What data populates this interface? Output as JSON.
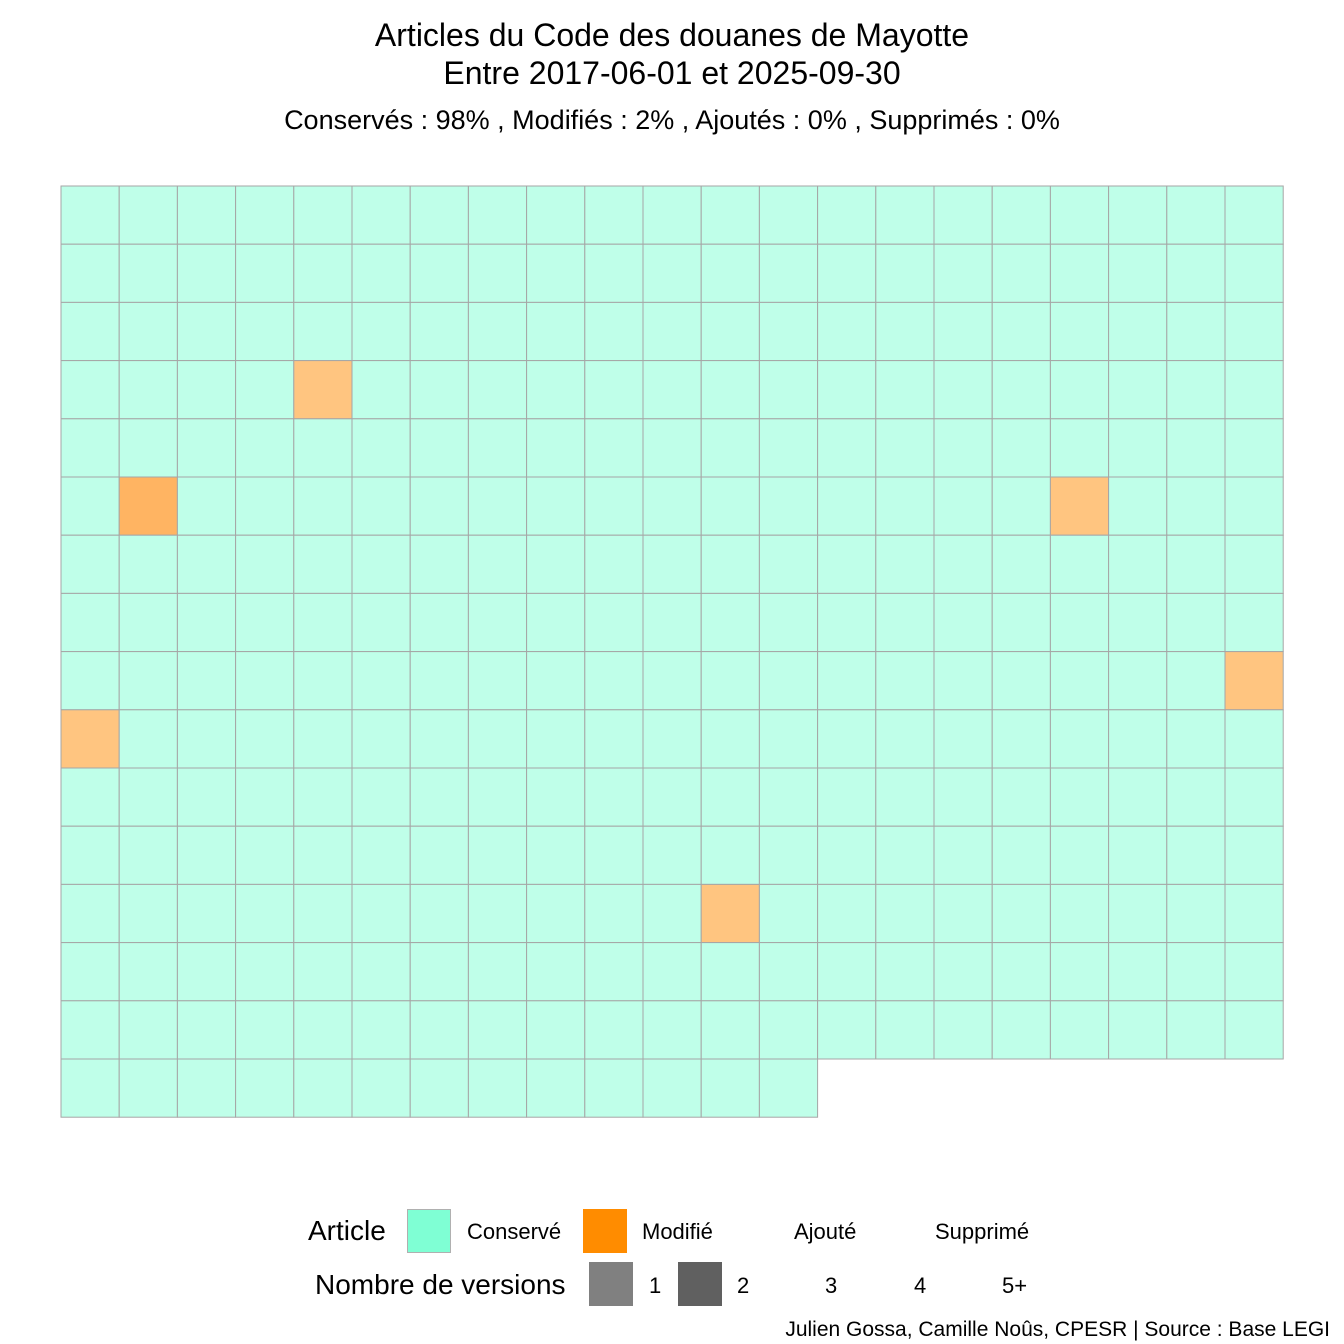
{
  "chart_data": {
    "type": "heatmap",
    "title": "Articles du Code des douanes de Mayotte",
    "subtitle": "Entre 2017-06-01 et 2025-09-30",
    "summary": "Conservés :  98% , Modifiés :  2% , Ajoutés :  0% , Supprimés :  0%",
    "ncols": 21,
    "total_articles": 328,
    "grid": false,
    "cells_by_state": {
      "Conservé": 322,
      "Modifié": 6,
      "Ajouté": 0,
      "Supprimé": 0
    },
    "modified_cells": [
      {
        "row": 4,
        "col": 5,
        "versions": 2
      },
      {
        "row": 6,
        "col": 2,
        "versions": 3
      },
      {
        "row": 6,
        "col": 18,
        "versions": 2
      },
      {
        "row": 9,
        "col": 21,
        "versions": 2
      },
      {
        "row": 10,
        "col": 1,
        "versions": 2
      },
      {
        "row": 13,
        "col": 12,
        "versions": 2
      }
    ],
    "legend": {
      "position": "bottom",
      "article_title": "Article",
      "article_states": [
        {
          "label": "Conservé",
          "color": "#7fffd4"
        },
        {
          "label": "Modifié",
          "color": "#ff8c00"
        },
        {
          "label": "Ajouté",
          "color": null
        },
        {
          "label": "Supprimé",
          "color": null
        }
      ],
      "versions_title": "Nombre de versions",
      "versions": [
        {
          "label": "1",
          "color": "#808080"
        },
        {
          "label": "2",
          "color": "#606060"
        },
        {
          "label": "3",
          "color": null
        },
        {
          "label": "4",
          "color": null
        },
        {
          "label": "5+",
          "color": null
        }
      ]
    },
    "caption": "Julien Gossa, Camille Noûs, CPESR  |  Source : Base LEGI"
  },
  "colors": {
    "conserve_fill": "#bfffe9",
    "modifie_fill_v2": "#ffc580",
    "modifie_fill_v3": "#ffb462",
    "cell_border": "#a6a6a6"
  }
}
